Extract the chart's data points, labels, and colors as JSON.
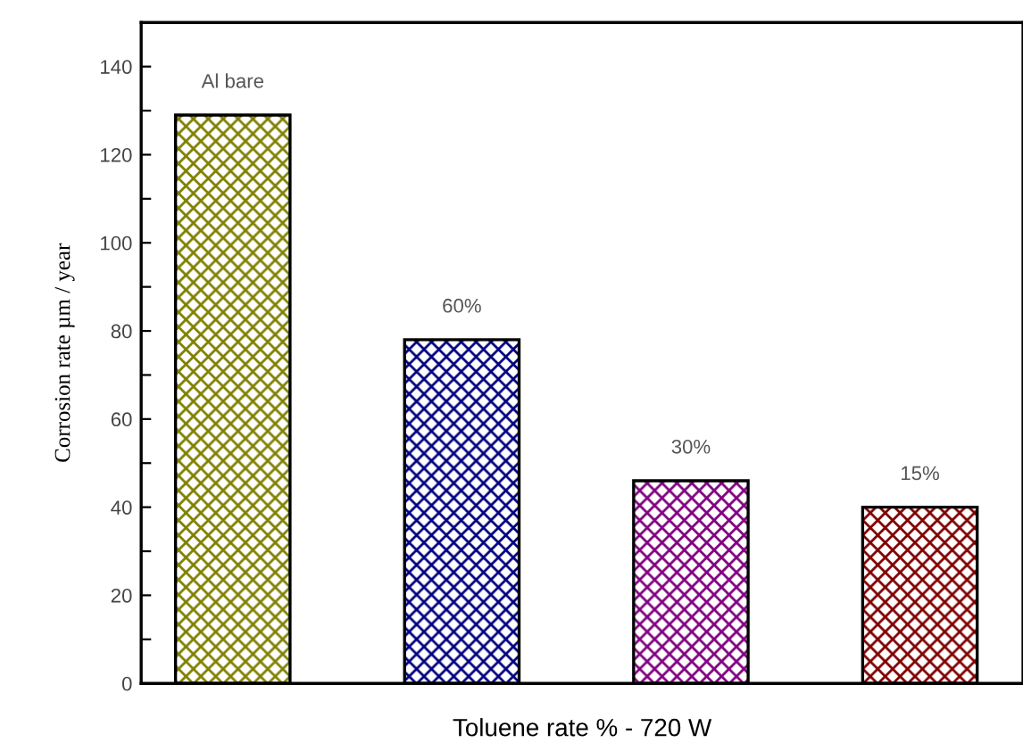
{
  "chart_data": {
    "type": "bar",
    "xlabel": "Toluene rate % - 720 W",
    "ylabel": "Corrosion rate µm / year",
    "categories": [
      "Al bare",
      "60%",
      "30%",
      "15%"
    ],
    "values": [
      129,
      78,
      46,
      40
    ],
    "colors": [
      "#808000",
      "#000080",
      "#800080",
      "#800000"
    ],
    "ylim": [
      0,
      150
    ],
    "yticks": [
      0,
      {
        "value": 10,
        "label": null
      },
      20,
      {
        "value": 30,
        "label": null
      },
      40,
      {
        "value": 50,
        "label": null
      },
      60,
      {
        "value": 70,
        "label": null
      },
      80,
      {
        "value": 90,
        "label": null
      },
      100,
      {
        "value": 110,
        "label": null
      },
      120,
      {
        "value": 130,
        "label": null
      },
      140
    ],
    "tick_labels": "y",
    "grid": false,
    "legend": false
  }
}
